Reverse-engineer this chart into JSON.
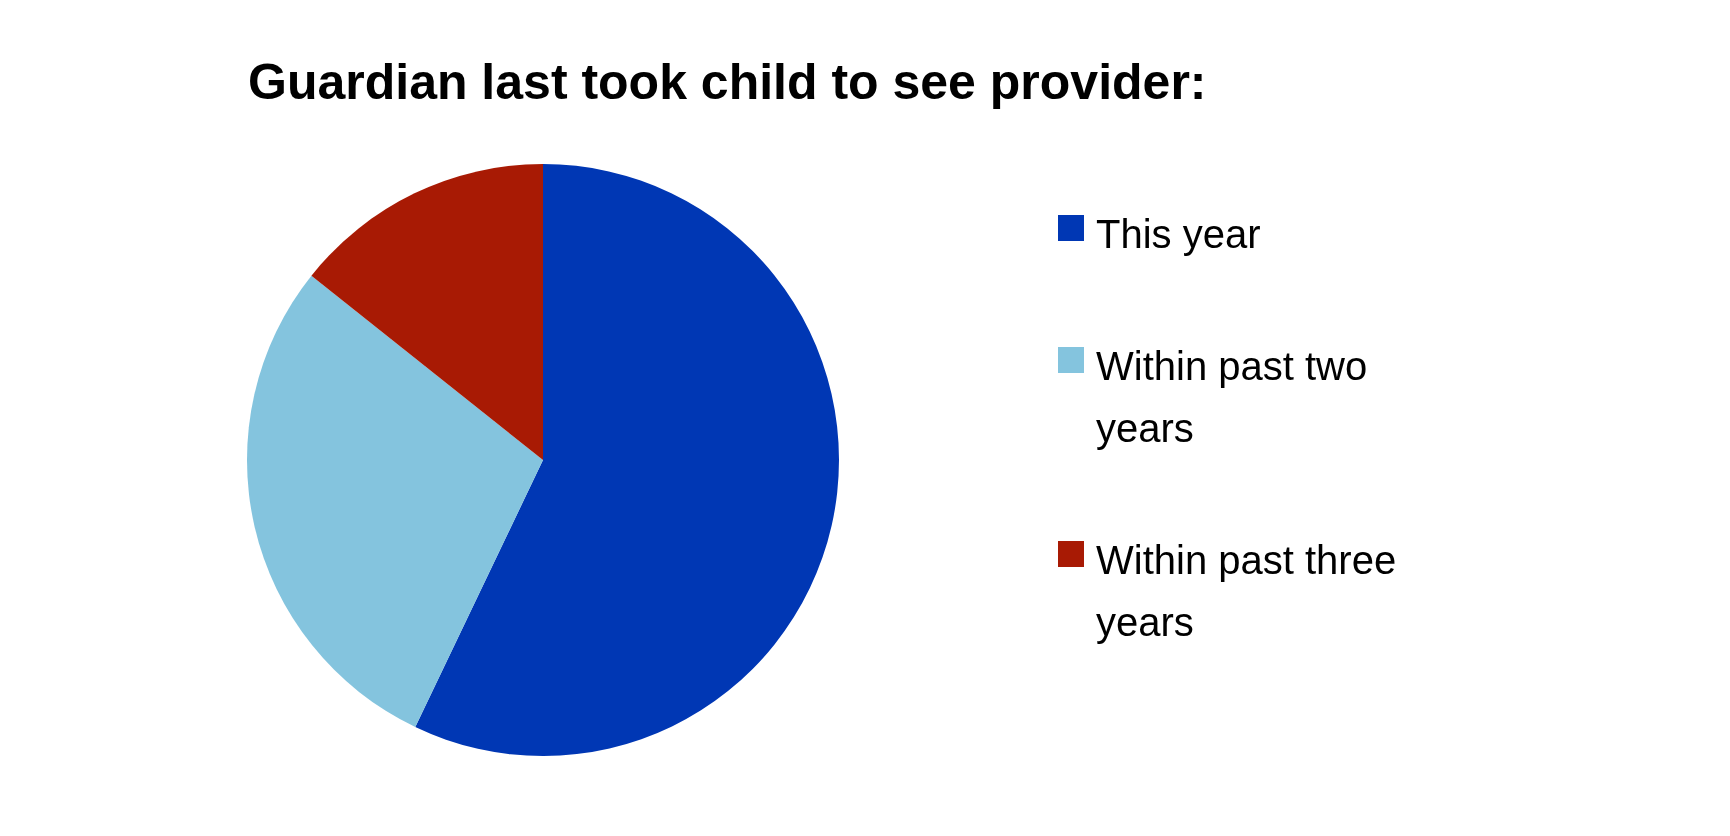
{
  "chart_data": {
    "type": "pie",
    "title": "Guardian last took child to see provider:",
    "categories": [
      "This year",
      "Within past two years",
      "Within past three years"
    ],
    "values": [
      57.1,
      28.6,
      14.3
    ],
    "colors": [
      "#0037b4",
      "#84c4de",
      "#a81a04"
    ],
    "legend": "right"
  }
}
